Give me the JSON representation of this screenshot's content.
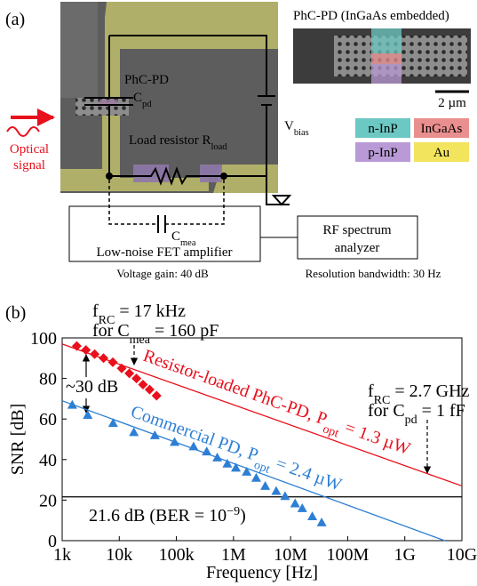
{
  "panel_a": {
    "label": "(a)",
    "inset_title": "PhC-PD (InGaAs embedded)",
    "scale_bar": "2 µm",
    "legend": [
      {
        "text": "n-InP",
        "color": "#6cc8c2"
      },
      {
        "text": "InGaAs",
        "color": "#ea8f8f"
      },
      {
        "text": "p-InP",
        "color": "#b99ad6"
      },
      {
        "text": "Au",
        "color": "#f3e45e"
      }
    ],
    "device_label": "PhC-PD",
    "cpd": [
      {
        "t": "C"
      },
      {
        "t": "pd",
        "sub": true
      }
    ],
    "optical_signal": [
      "Optical",
      "signal"
    ],
    "load_resistor": [
      {
        "t": "Load resistor R"
      },
      {
        "t": "load",
        "sub": true
      }
    ],
    "vbias": [
      {
        "t": "V"
      },
      {
        "t": "bias",
        "sub": true
      }
    ],
    "cmea": [
      {
        "t": "C"
      },
      {
        "t": "mea",
        "sub": true
      }
    ],
    "amplifier": "Low-noise FET amplifier",
    "gain": "Voltage gain: 40 dB",
    "analyzer": [
      "RF spectrum",
      "analyzer"
    ],
    "resolution": "Resolution bandwidth: 30 Hz"
  },
  "chart_data": {
    "type": "scatter",
    "label": "(b)",
    "xlabel": "Frequency [Hz]",
    "ylabel": "SNR [dB]",
    "xscale": "log",
    "xlim": [
      1000,
      10000000000
    ],
    "xticks": [
      {
        "value": 1000,
        "label": "1k"
      },
      {
        "value": 10000,
        "label": "10k"
      },
      {
        "value": 100000,
        "label": "100k"
      },
      {
        "value": 1000000,
        "label": "1M"
      },
      {
        "value": 10000000,
        "label": "10M"
      },
      {
        "value": 100000000,
        "label": "100M"
      },
      {
        "value": 1000000000,
        "label": "1G"
      },
      {
        "value": 10000000000,
        "label": "10G"
      }
    ],
    "ylim": [
      0,
      100
    ],
    "yticks": [
      0,
      20,
      40,
      60,
      80,
      100
    ],
    "series": [
      {
        "color": "#e8101c",
        "marker": "diamond",
        "x": [
          1800,
          2600,
          3700,
          5300,
          7700,
          11000,
          15000,
          20000,
          26000,
          34000,
          45000
        ],
        "values": [
          96,
          94,
          92,
          90,
          88,
          85,
          82.5,
          80,
          77,
          74.5,
          71.5
        ]
      },
      {
        "color": "#2d7fd4",
        "marker": "triangle",
        "x": [
          1500,
          2800,
          7800,
          18000,
          42000,
          93000,
          200000,
          340000,
          520000,
          780000,
          1100000,
          1700000,
          2500000,
          3600000,
          5600000,
          8000000,
          12000000,
          16000000,
          24000000,
          35000000
        ],
        "values": [
          67,
          62,
          58,
          53.5,
          52,
          48.7,
          46.5,
          44,
          41,
          38,
          36,
          34,
          31,
          27,
          24.5,
          22,
          18.4,
          16,
          12,
          9
        ]
      }
    ],
    "fits": [
      {
        "color": "#e8101c",
        "x": [
          1000,
          10000000000
        ],
        "values": [
          97,
          27
        ]
      },
      {
        "color": "#2d7fd4",
        "x": [
          1000,
          5000000000
        ],
        "values": [
          69,
          0
        ]
      }
    ],
    "hline": {
      "value": 21.6,
      "color": "#000000"
    },
    "annotations": [
      {
        "parts": [
          {
            "t": "f"
          },
          {
            "t": "RC",
            "sub": true
          },
          {
            "t": " = 17 kHz"
          }
        ],
        "color": "#000000"
      },
      {
        "parts": [
          {
            "t": "for C"
          },
          {
            "t": "mea",
            "sub": true
          },
          {
            "t": " = 160 pF"
          }
        ],
        "color": "#000000"
      },
      {
        "parts": [
          {
            "t": "~30 dB"
          }
        ],
        "color": "#000000"
      },
      {
        "parts": [
          {
            "t": "Resistor-loaded PhC-PD, P"
          },
          {
            "t": "opt",
            "sub": true
          },
          {
            "t": " = 1.3 µW"
          }
        ],
        "color": "#e8101c"
      },
      {
        "parts": [
          {
            "t": "Commercial PD, P"
          },
          {
            "t": "opt",
            "sub": true
          },
          {
            "t": " = 2.4 µW"
          }
        ],
        "color": "#2d7fd4"
      },
      {
        "parts": [
          {
            "t": "f"
          },
          {
            "t": "RC",
            "sub": true
          },
          {
            "t": " = 2.7 GHz"
          }
        ],
        "color": "#000000"
      },
      {
        "parts": [
          {
            "t": "for C"
          },
          {
            "t": "pd",
            "sub": true
          },
          {
            "t": " = 1 fF"
          }
        ],
        "color": "#000000"
      },
      {
        "parts": [
          {
            "t": "21.6 dB (BER = 10"
          },
          {
            "t": "−9",
            "sup": true
          },
          {
            "t": ")"
          }
        ],
        "color": "#000000"
      }
    ]
  }
}
